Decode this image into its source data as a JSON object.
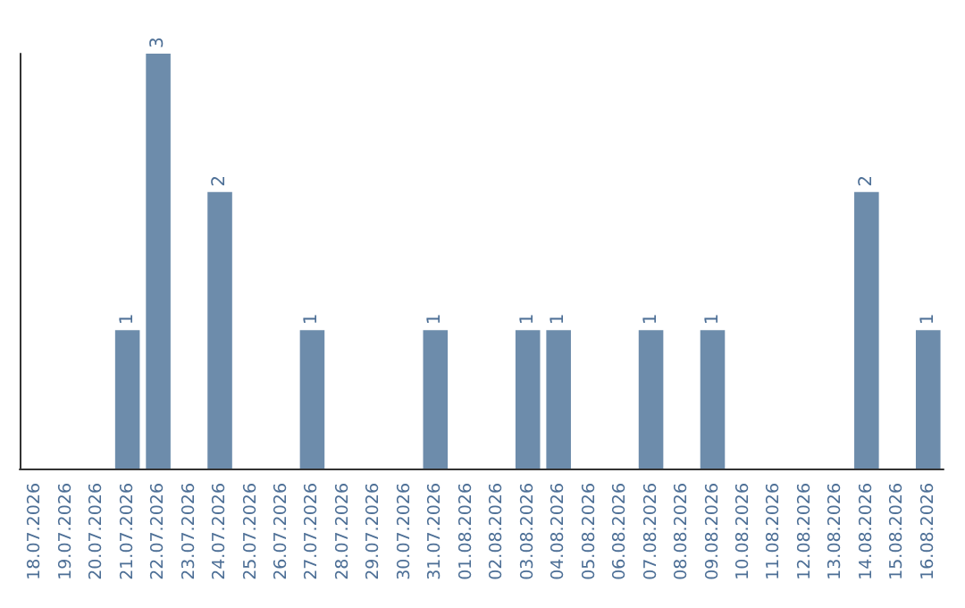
{
  "chart_data": {
    "type": "bar",
    "categories": [
      "18.07.2026",
      "19.07.2026",
      "20.07.2026",
      "21.07.2026",
      "22.07.2026",
      "23.07.2026",
      "24.07.2026",
      "25.07.2026",
      "26.07.2026",
      "27.07.2026",
      "28.07.2026",
      "29.07.2026",
      "30.07.2026",
      "31.07.2026",
      "01.08.2026",
      "02.08.2026",
      "03.08.2026",
      "04.08.2026",
      "05.08.2026",
      "06.08.2026",
      "07.08.2026",
      "08.08.2026",
      "09.08.2026",
      "10.08.2026",
      "11.08.2026",
      "12.08.2026",
      "13.08.2026",
      "14.08.2026",
      "15.08.2026",
      "16.08.2026"
    ],
    "values": [
      0,
      0,
      0,
      1,
      3,
      0,
      2,
      0,
      0,
      1,
      0,
      0,
      0,
      1,
      0,
      0,
      1,
      1,
      0,
      0,
      1,
      0,
      1,
      0,
      0,
      0,
      0,
      2,
      0,
      1
    ],
    "value_labels": [
      null,
      null,
      null,
      "1",
      "3",
      null,
      "2",
      null,
      null,
      "1",
      null,
      null,
      null,
      "1",
      null,
      null,
      "1",
      "1",
      null,
      null,
      "1",
      null,
      "1",
      null,
      null,
      null,
      null,
      "2",
      null,
      "1"
    ],
    "color": "#6d8cab",
    "grid": false,
    "tick_labels": "x"
  }
}
